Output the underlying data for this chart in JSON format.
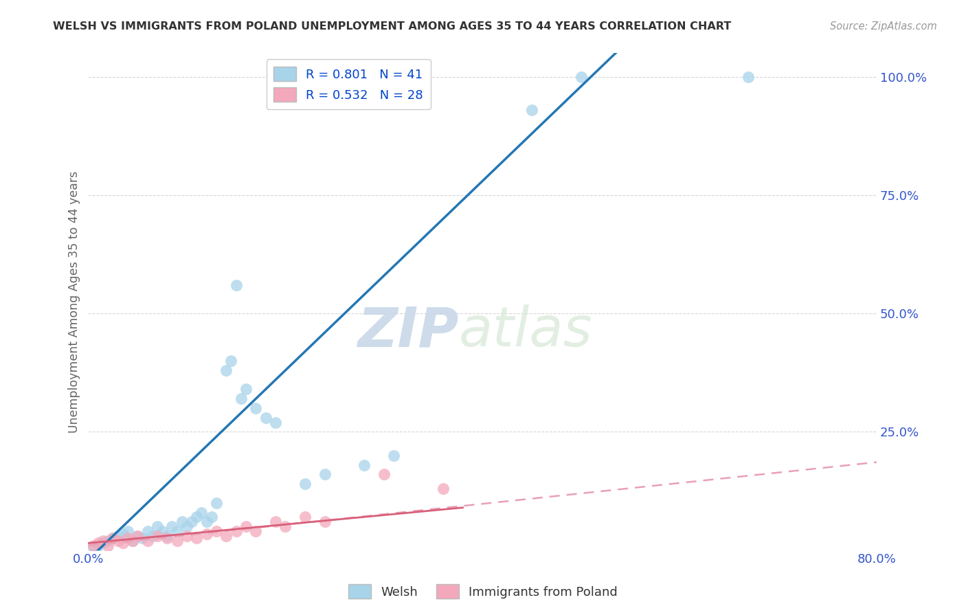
{
  "title": "WELSH VS IMMIGRANTS FROM POLAND UNEMPLOYMENT AMONG AGES 35 TO 44 YEARS CORRELATION CHART",
  "source": "Source: ZipAtlas.com",
  "ylabel": "Unemployment Among Ages 35 to 44 years",
  "xlim": [
    0.0,
    0.8
  ],
  "ylim": [
    0.0,
    1.05
  ],
  "xticks": [
    0.0,
    0.2,
    0.4,
    0.6,
    0.8
  ],
  "xticklabels": [
    "0.0%",
    "",
    "",
    "",
    "80.0%"
  ],
  "yticks": [
    0.0,
    0.25,
    0.5,
    0.75,
    1.0
  ],
  "yticklabels": [
    "",
    "25.0%",
    "50.0%",
    "75.0%",
    "100.0%"
  ],
  "welsh_color": "#a8d4ea",
  "poland_color": "#f4a8bc",
  "welsh_line_color": "#2477b3",
  "poland_line_color": "#d9607a",
  "poland_line_dash_color": "#e8a0b4",
  "R_welsh": 0.801,
  "N_welsh": 41,
  "R_poland": 0.532,
  "N_poland": 28,
  "legend_label_welsh": "Welsh",
  "legend_label_poland": "Immigrants from Poland",
  "welsh_x": [
    0.005,
    0.01,
    0.015,
    0.02,
    0.025,
    0.03,
    0.035,
    0.04,
    0.045,
    0.05,
    0.055,
    0.06,
    0.065,
    0.07,
    0.075,
    0.08,
    0.085,
    0.09,
    0.095,
    0.1,
    0.105,
    0.11,
    0.115,
    0.12,
    0.125,
    0.13,
    0.14,
    0.145,
    0.15,
    0.155,
    0.16,
    0.17,
    0.18,
    0.19,
    0.22,
    0.24,
    0.28,
    0.31,
    0.45,
    0.5,
    0.67
  ],
  "welsh_y": [
    0.005,
    0.01,
    0.015,
    0.02,
    0.025,
    0.03,
    0.035,
    0.04,
    0.02,
    0.03,
    0.025,
    0.04,
    0.03,
    0.05,
    0.04,
    0.03,
    0.05,
    0.04,
    0.06,
    0.05,
    0.06,
    0.07,
    0.08,
    0.06,
    0.07,
    0.1,
    0.38,
    0.4,
    0.56,
    0.32,
    0.34,
    0.3,
    0.28,
    0.27,
    0.14,
    0.16,
    0.18,
    0.2,
    0.93,
    1.0,
    1.0
  ],
  "poland_x": [
    0.005,
    0.01,
    0.015,
    0.02,
    0.025,
    0.03,
    0.035,
    0.04,
    0.045,
    0.05,
    0.06,
    0.07,
    0.08,
    0.09,
    0.1,
    0.11,
    0.12,
    0.13,
    0.14,
    0.15,
    0.16,
    0.17,
    0.19,
    0.2,
    0.22,
    0.24,
    0.3,
    0.36
  ],
  "poland_y": [
    0.01,
    0.015,
    0.02,
    0.01,
    0.025,
    0.02,
    0.015,
    0.025,
    0.02,
    0.03,
    0.02,
    0.03,
    0.025,
    0.02,
    0.03,
    0.025,
    0.035,
    0.04,
    0.03,
    0.04,
    0.05,
    0.04,
    0.06,
    0.05,
    0.07,
    0.06,
    0.16,
    0.13
  ],
  "background_color": "#ffffff",
  "grid_color": "#cccccc",
  "title_color": "#333333",
  "axis_label_color": "#666666",
  "tick_color": "#3355cc",
  "watermark_color": "#d8e4ef"
}
